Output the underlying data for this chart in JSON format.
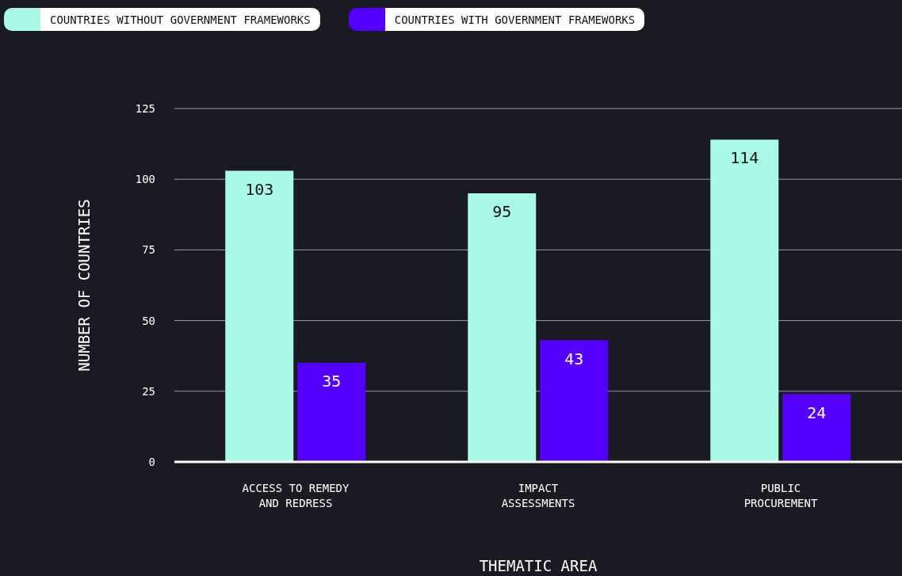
{
  "chart_data": {
    "type": "bar",
    "xlabel": "THEMATIC AREA",
    "ylabel": "NUMBER OF COUNTRIES",
    "categories": [
      "ACCESS TO REMEDY AND REDRESS",
      "IMPACT ASSESSMENTS",
      "PUBLIC PROCUREMENT"
    ],
    "series": [
      {
        "name": "COUNTRIES WITHOUT GOVERNMENT FRAMEWORKS",
        "color": "#a8f9e6",
        "values": [
          103,
          95,
          114
        ]
      },
      {
        "name": "COUNTRIES WITH GOVERNMENT FRAMEWORKS",
        "color": "#5500ff",
        "values": [
          35,
          43,
          24
        ]
      }
    ],
    "ylim": [
      0,
      125
    ],
    "yticks": [
      0,
      25,
      50,
      75,
      100,
      125
    ],
    "grid": "y",
    "legend": "top left",
    "data_labels": true
  }
}
